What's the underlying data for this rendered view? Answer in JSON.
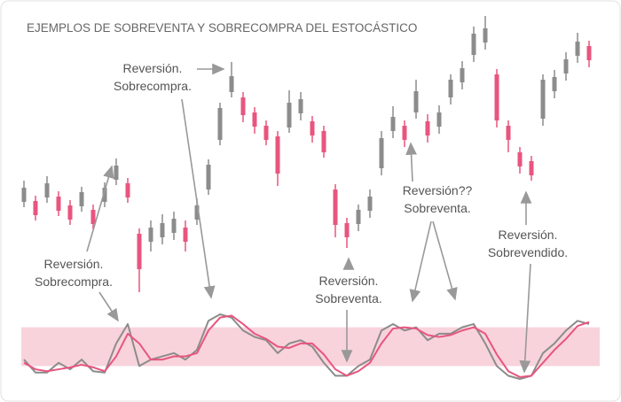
{
  "chart_data": {
    "type": "candlestick",
    "title": "EJEMPLOS DE SOBREVENTA Y SOBRECOMPRA DEL ESTOCÁSTICO",
    "up_color": "#8c8c8c",
    "down_color": "#e8557e",
    "ylim": [
      0,
      454
    ],
    "open": [
      226,
      227,
      231,
      232,
      222,
      221,
      217,
      226,
      251,
      247,
      190,
      181,
      186,
      191,
      197,
      206,
      240,
      296,
      350,
      344,
      327,
      312,
      300,
      310,
      326,
      317,
      306,
      240,
      202,
      201,
      216,
      264,
      306,
      312,
      327,
      317,
      311,
      344,
      361,
      392,
      406,
      370,
      312,
      282,
      272,
      320,
      351,
      371,
      391,
      402
    ],
    "high": [
      250,
      233,
      255,
      238,
      228,
      243,
      223,
      248,
      275,
      253,
      196,
      205,
      212,
      215,
      205,
      230,
      274,
      338,
      384,
      350,
      333,
      318,
      306,
      352,
      350,
      323,
      312,
      246,
      208,
      223,
      240,
      306,
      334,
      318,
      364,
      325,
      335,
      370,
      385,
      424,
      436,
      376,
      318,
      288,
      278,
      370,
      375,
      395,
      417,
      408
    ],
    "low": [
      220,
      205,
      225,
      210,
      200,
      215,
      195,
      220,
      245,
      225,
      124,
      170,
      178,
      183,
      170,
      200,
      234,
      290,
      344,
      316,
      303,
      290,
      244,
      304,
      318,
      293,
      276,
      186,
      174,
      193,
      208,
      256,
      298,
      288,
      320,
      293,
      303,
      336,
      353,
      384,
      398,
      310,
      282,
      258,
      250,
      312,
      343,
      363,
      383,
      378
    ],
    "close": [
      242,
      211,
      247,
      216,
      206,
      237,
      201,
      242,
      267,
      231,
      150,
      197,
      202,
      207,
      181,
      222,
      268,
      332,
      368,
      324,
      311,
      296,
      258,
      338,
      342,
      301,
      282,
      200,
      186,
      217,
      232,
      298,
      322,
      296,
      351,
      301,
      327,
      364,
      377,
      416,
      422,
      318,
      296,
      266,
      256,
      364,
      367,
      387,
      407,
      386
    ],
    "oscillator": {
      "ylim": [
        0,
        100
      ],
      "overbought": 80,
      "oversold": 20,
      "series": [
        {
          "color": "#8c8c8c",
          "values": [
            30,
            10,
            10,
            25,
            15,
            30,
            12,
            10,
            55,
            85,
            20,
            30,
            35,
            40,
            30,
            45,
            90,
            100,
            95,
            75,
            65,
            60,
            40,
            55,
            60,
            50,
            25,
            5,
            5,
            20,
            30,
            75,
            85,
            75,
            80,
            60,
            70,
            70,
            80,
            85,
            55,
            20,
            5,
            0,
            5,
            40,
            55,
            75,
            90,
            85
          ]
        },
        {
          "color": "#e8557e",
          "values": [
            25,
            15,
            12,
            15,
            18,
            22,
            18,
            12,
            35,
            70,
            55,
            30,
            30,
            35,
            35,
            40,
            75,
            95,
            98,
            85,
            70,
            62,
            50,
            48,
            55,
            55,
            38,
            15,
            5,
            12,
            25,
            55,
            78,
            80,
            78,
            68,
            65,
            68,
            75,
            80,
            70,
            38,
            12,
            3,
            5,
            25,
            45,
            62,
            82,
            88
          ]
        }
      ]
    },
    "annotations": [
      {
        "lines": [
          "Reversión.",
          "Sobrecompra."
        ]
      },
      {
        "lines": [
          "Reversión.",
          "Sobrecompra."
        ]
      },
      {
        "lines": [
          "Reversión.",
          "Sobreventa."
        ]
      },
      {
        "lines": [
          "Reversión??",
          "Sobreventa."
        ]
      },
      {
        "lines": [
          "Reversión.",
          "Sobrevendido."
        ]
      }
    ]
  }
}
